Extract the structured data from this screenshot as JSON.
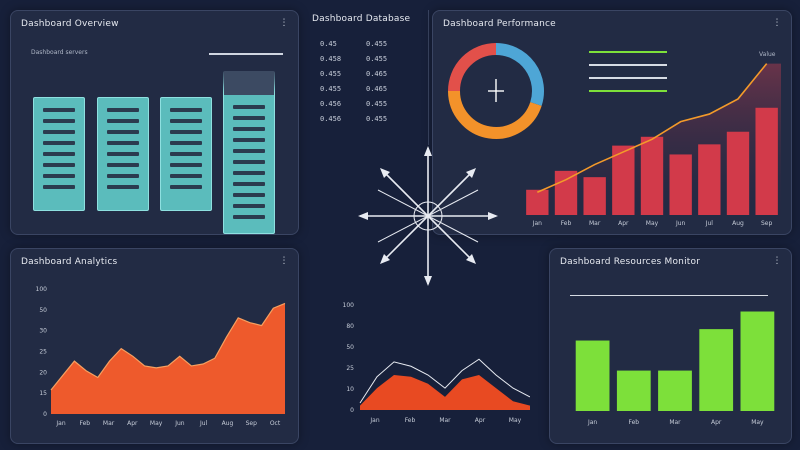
{
  "colors": {
    "background": "#17203a",
    "panel": "#222b44",
    "teal": "#5bbcbc",
    "orange": "#ee5a2c",
    "red": "#d23a4a",
    "green": "#7de03a"
  },
  "panel_servers": {
    "title": "Dashboard Overview",
    "subtitle": "Dashboard servers",
    "menu_icon": "more-icon",
    "menu_glyph": "⋮",
    "server_count": 4
  },
  "panel_db": {
    "title": "Dashboard Database",
    "rows": [
      {
        "a": "0.45",
        "b": "0.455"
      },
      {
        "a": "0.458",
        "b": "0.455"
      },
      {
        "a": "0.455",
        "b": "0.465"
      },
      {
        "a": "0.455",
        "b": "0.465"
      },
      {
        "a": "0.456",
        "b": "0.455"
      },
      {
        "a": "0.456",
        "b": "0.455"
      }
    ]
  },
  "panel_trend": {
    "title": "Dashboard Performance",
    "menu_glyph": "⋮",
    "legend_label": "Value",
    "ring_segments": [
      {
        "color": "#4ea6d6",
        "value": 30
      },
      {
        "color": "#f3922a",
        "value": 45
      },
      {
        "color": "#e2504a",
        "value": 25
      }
    ],
    "progress_lines": [
      {
        "color": "#7de03a",
        "fill": 1.0
      },
      {
        "color": "#d6dbe4",
        "fill": 1.0
      },
      {
        "color": "#d6dbe4",
        "fill": 1.0
      },
      {
        "color": "#7de03a",
        "fill": 1.0
      }
    ]
  },
  "compass": {
    "icon": "compass-icon"
  },
  "panel_area": {
    "title": "Dashboard Analytics",
    "menu_glyph": "⋮"
  },
  "panel_mini": {
    "title": ""
  },
  "panel_green": {
    "title": "Dashboard Resources Monitor",
    "menu_glyph": "⋮"
  },
  "chart_data": [
    {
      "type": "bar",
      "title": "Dashboard Performance",
      "categories": [
        "Jan",
        "Feb",
        "Mar",
        "Apr",
        "May",
        "Jun",
        "Jul",
        "Aug",
        "Sep"
      ],
      "values": [
        20,
        35,
        30,
        55,
        62,
        48,
        56,
        66,
        85
      ],
      "line": [
        18,
        28,
        40,
        50,
        60,
        74,
        80,
        92,
        120
      ],
      "ylim": [
        0,
        130
      ]
    },
    {
      "type": "area",
      "title": "Dashboard Analytics",
      "x_labels": [
        "Jan",
        "Feb",
        "Mar",
        "Apr",
        "May",
        "Jun",
        "Jul",
        "Aug",
        "Sep",
        "Oct"
      ],
      "x": [
        0,
        5,
        10,
        15,
        20,
        25,
        30,
        35,
        40,
        45,
        50,
        55,
        60,
        65,
        70,
        75,
        80,
        85,
        90,
        95,
        100
      ],
      "values": [
        25,
        40,
        55,
        45,
        38,
        55,
        68,
        60,
        50,
        48,
        50,
        60,
        50,
        52,
        58,
        80,
        100,
        95,
        92,
        110,
        115
      ],
      "yticks": [
        "100",
        "50",
        "30",
        "25",
        "20",
        "15",
        "0"
      ],
      "ylim": [
        0,
        130
      ]
    },
    {
      "type": "area",
      "x_labels": [
        "Jan",
        "Feb",
        "Mar",
        "Apr",
        "May"
      ],
      "x": [
        0,
        10,
        20,
        30,
        40,
        50,
        60,
        70,
        80,
        90,
        100
      ],
      "values": [
        5,
        25,
        40,
        38,
        30,
        15,
        35,
        40,
        25,
        10,
        5
      ],
      "line": [
        8,
        38,
        55,
        50,
        40,
        25,
        45,
        58,
        40,
        25,
        15
      ],
      "yticks": [
        "100",
        "80",
        "50",
        "25",
        "10",
        "0"
      ],
      "ylim": [
        0,
        120
      ]
    },
    {
      "type": "bar",
      "title": "Dashboard Resources Monitor",
      "categories": [
        "Jan",
        "Feb",
        "Mar",
        "Apr",
        "May"
      ],
      "values": [
        68,
        39,
        39,
        79,
        96
      ],
      "ylim": [
        0,
        110
      ]
    }
  ]
}
